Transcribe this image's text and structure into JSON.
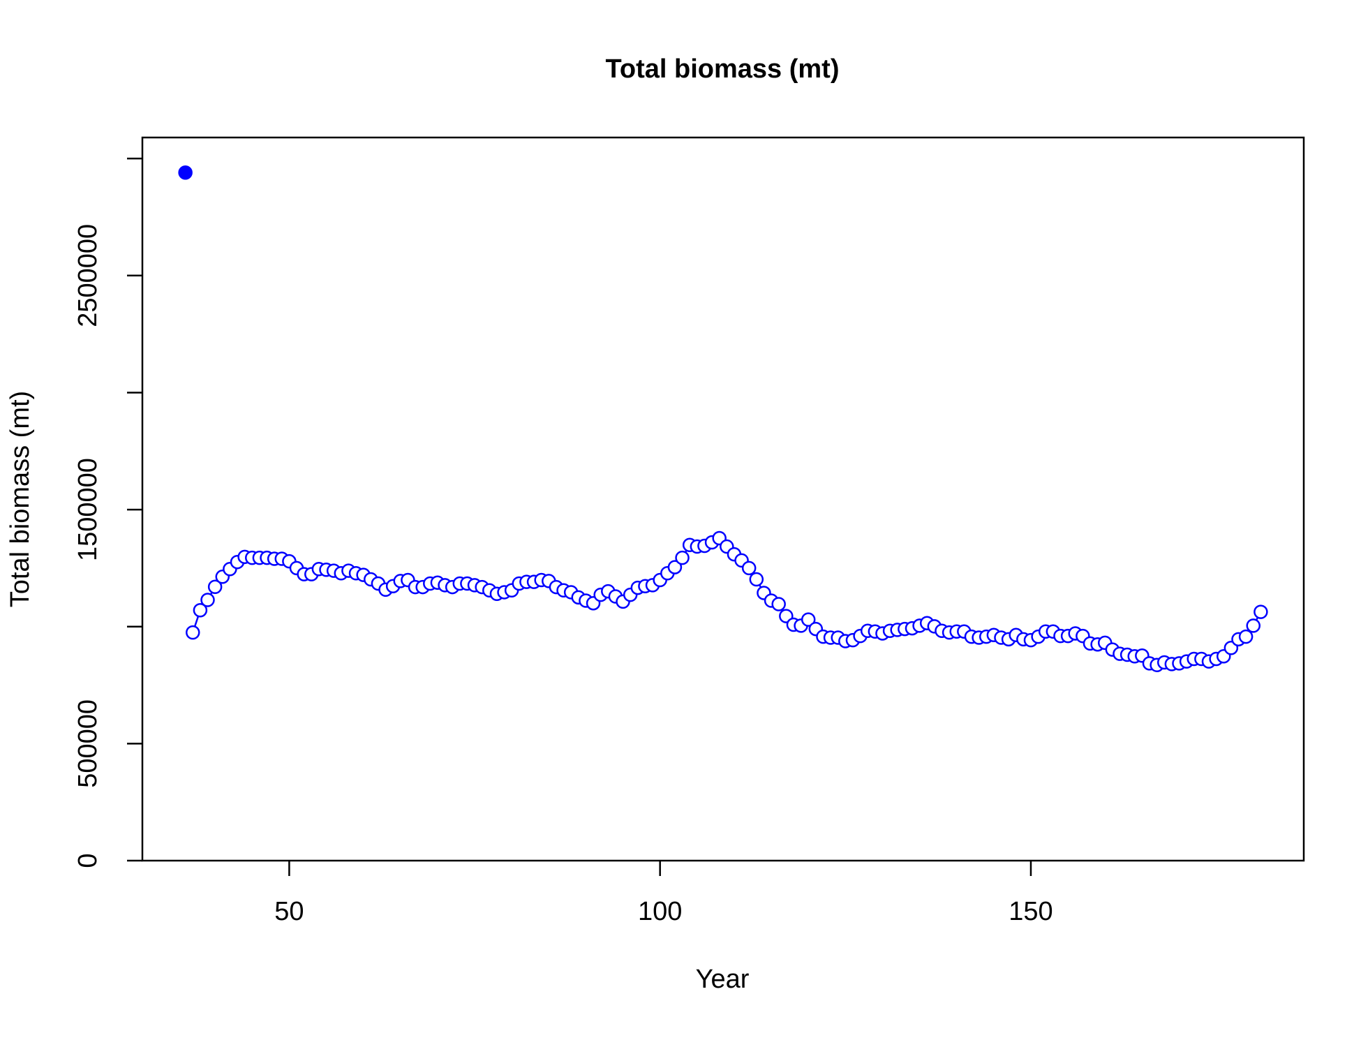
{
  "chart_data": {
    "type": "line",
    "title": "Total biomass (mt)",
    "xlabel": "Year",
    "ylabel": "Total biomass (mt)",
    "xlim": [
      30.2,
      186.8
    ],
    "ylim": [
      0,
      3090000
    ],
    "xticks": [
      50,
      100,
      150
    ],
    "yticks": [
      0,
      500000,
      1500000,
      2500000
    ],
    "yticks_unlabeled": [
      1000000,
      2000000,
      3000000
    ],
    "series": [
      {
        "color": "#0000ff",
        "filled": true,
        "x": [
          36
        ],
        "values": [
          2940000
        ]
      },
      {
        "color": "#0000ff",
        "filled": false,
        "x": [
          37,
          38,
          39,
          40,
          41,
          42,
          43,
          44,
          45,
          46,
          47,
          48,
          49,
          50,
          51,
          52,
          53,
          54,
          55,
          56,
          57,
          58,
          59,
          60,
          61,
          62,
          63,
          64,
          65,
          66,
          67,
          68,
          69,
          70,
          71,
          72,
          73,
          74,
          75,
          76,
          77,
          78,
          79,
          80,
          81,
          82,
          83,
          84,
          85,
          86,
          87,
          88,
          89,
          90,
          91,
          92,
          93,
          94,
          95,
          96,
          97,
          98,
          99,
          100,
          101,
          102,
          103,
          104,
          105,
          106,
          107,
          108,
          109,
          110,
          111,
          112,
          113,
          114,
          115,
          116,
          117,
          118,
          119,
          120,
          121,
          122,
          123,
          124,
          125,
          126,
          127,
          128,
          129,
          130,
          131,
          132,
          133,
          134,
          135,
          136,
          137,
          138,
          139,
          140,
          141,
          142,
          143,
          144,
          145,
          146,
          147,
          148,
          149,
          150,
          151,
          152,
          153,
          154,
          155,
          156,
          157,
          158,
          159,
          160,
          161,
          162,
          163,
          164,
          165,
          166,
          167,
          168,
          169,
          170,
          171,
          172,
          173,
          174,
          175,
          176,
          177,
          178,
          179,
          180,
          181
        ],
        "values": [
          975000,
          1070000,
          1114000,
          1170000,
          1213000,
          1246000,
          1276000,
          1298000,
          1294000,
          1294000,
          1294000,
          1290000,
          1290000,
          1279000,
          1250000,
          1224000,
          1224000,
          1246000,
          1243000,
          1239000,
          1228000,
          1239000,
          1228000,
          1221000,
          1202000,
          1184000,
          1158000,
          1173000,
          1195000,
          1199000,
          1169000,
          1169000,
          1184000,
          1188000,
          1177000,
          1169000,
          1184000,
          1184000,
          1177000,
          1169000,
          1155000,
          1140000,
          1147000,
          1155000,
          1184000,
          1191000,
          1191000,
          1199000,
          1195000,
          1169000,
          1155000,
          1147000,
          1125000,
          1111000,
          1100000,
          1136000,
          1151000,
          1129000,
          1107000,
          1136000,
          1166000,
          1173000,
          1177000,
          1199000,
          1228000,
          1254000,
          1294000,
          1349000,
          1342000,
          1345000,
          1360000,
          1378000,
          1342000,
          1309000,
          1283000,
          1250000,
          1202000,
          1144000,
          1111000,
          1096000,
          1045000,
          1008000,
          1004000,
          1030000,
          990000,
          957000,
          953000,
          953000,
          938000,
          942000,
          960000,
          982000,
          979000,
          971000,
          982000,
          986000,
          990000,
          993000,
          1004000,
          1015000,
          1001000,
          982000,
          975000,
          979000,
          979000,
          957000,
          953000,
          957000,
          964000,
          953000,
          946000,
          964000,
          946000,
          942000,
          957000,
          979000,
          979000,
          960000,
          960000,
          971000,
          960000,
          928000,
          924000,
          931000,
          902000,
          884000,
          880000,
          873000,
          876000,
          843000,
          836000,
          847000,
          840000,
          843000,
          851000,
          862000,
          862000,
          851000,
          862000,
          873000,
          909000,
          946000,
          957000,
          1004000,
          1063000
        ]
      }
    ]
  }
}
